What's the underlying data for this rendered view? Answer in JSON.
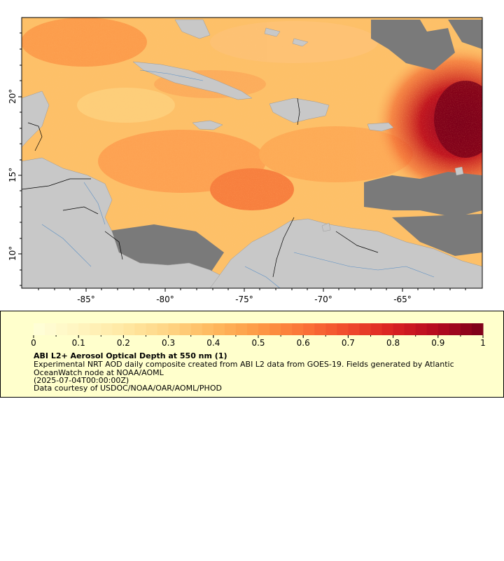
{
  "map": {
    "x_tick_labels": [
      "-85°",
      "-80°",
      "-75°",
      "-70°",
      "-65°"
    ],
    "y_tick_labels": [
      "20°",
      "15°",
      "10°"
    ],
    "land_color": "#c8c8c8",
    "nodata_color": "#7a7a7a",
    "border_color": "#000000",
    "river_color": "#5a8fc4"
  },
  "colorbar": {
    "tick_labels": [
      "0",
      "0.1",
      "0.2",
      "0.3",
      "0.4",
      "0.5",
      "0.6",
      "0.7",
      "0.8",
      "0.9",
      "1"
    ],
    "colors": [
      "#ffffd9",
      "#fff5c0",
      "#ffe8a3",
      "#fed484",
      "#feb95e",
      "#fd9a46",
      "#fb7437",
      "#f04a2c",
      "#d92121",
      "#b3091f",
      "#7a0019"
    ]
  },
  "caption": {
    "title": "ABI L2+ Aerosol Optical Depth at 550 nm (1)",
    "description": "Experimental NRT AOD daily composite created from ABI L2 data from GOES-19. Fields generated by Atlantic OceanWatch node at NOAA/AOML",
    "timestamp": "(2025-07-04T00:00:00Z)",
    "credit": "Data courtesy of USDOC/NOAA/OAR/AOML/PHOD"
  }
}
